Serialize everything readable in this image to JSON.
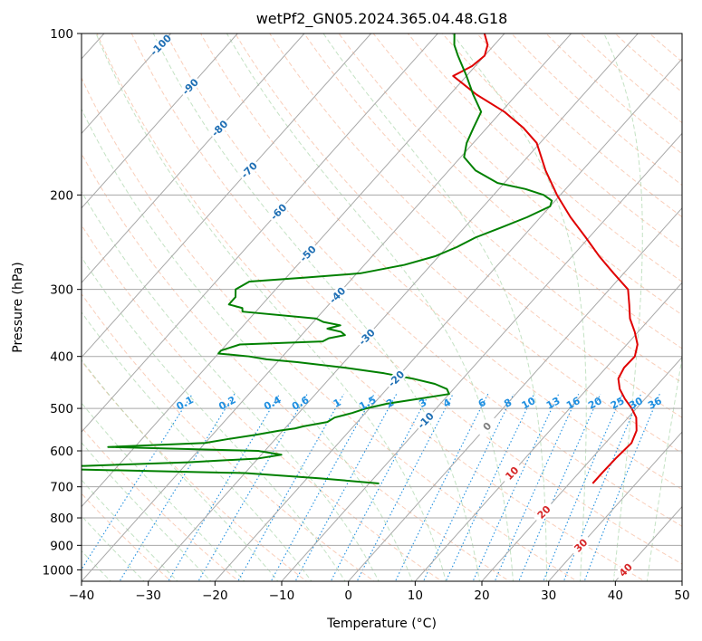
{
  "chart_data": {
    "type": "line",
    "subtype": "skew-t log-p",
    "title": "wetPf2_GN05.2024.365.04.48.G18",
    "xlabel": "Temperature (°C)",
    "ylabel": "Pressure (hPa)",
    "xlim": [
      -40,
      50
    ],
    "ylim": [
      1050,
      100
    ],
    "yscale": "log",
    "grid": true,
    "x_ticks": [
      -40,
      -30,
      -20,
      -10,
      0,
      10,
      20,
      30,
      40,
      50
    ],
    "y_ticks": [
      100,
      200,
      300,
      400,
      500,
      600,
      700,
      800,
      900,
      1000
    ],
    "colors": {
      "temperature": "#e00000",
      "dewpoint": "#008000",
      "isotherm": "#a8a8a8",
      "dry_adiabat": "#f4a582",
      "moist_adiabat": "#9ccf9c",
      "mixing_ratio": "#1f8fe0",
      "label_negative": "#1f6fb4",
      "label_positive": "#d62728",
      "label_zero": "#7f7f7f"
    },
    "series": [
      {
        "key": "temperature",
        "p": [
          690,
          660,
          620,
          580,
          550,
          520,
          500,
          480,
          460,
          440,
          420,
          400,
          380,
          360,
          340,
          320,
          300,
          280,
          260,
          240,
          220,
          200,
          180,
          160,
          150,
          140,
          130,
          120,
          115,
          110,
          105,
          100
        ],
        "t": [
          23.5,
          23.5,
          23.6,
          23.9,
          23.0,
          21.2,
          19.3,
          17.0,
          14.9,
          13.3,
          12.7,
          12.8,
          11.6,
          9.5,
          7.0,
          5.0,
          2.8,
          -1.5,
          -6.0,
          -10.5,
          -15.5,
          -20.5,
          -25.5,
          -30.5,
          -34.5,
          -39.5,
          -46.0,
          -52.0,
          -50.5,
          -50.0,
          -51.0,
          -53.0
        ]
      },
      {
        "key": "dewpoint",
        "p": [
          690,
          675,
          660,
          650,
          645,
          640,
          630,
          620,
          610,
          600,
          590,
          580,
          570,
          560,
          550,
          545,
          540,
          530,
          520,
          510,
          500,
          490,
          480,
          470,
          460,
          450,
          440,
          430,
          420,
          410,
          405,
          400,
          395,
          390,
          380,
          375,
          370,
          365,
          360,
          355,
          350,
          345,
          340,
          330,
          325,
          320,
          310,
          300,
          290,
          285,
          280,
          270,
          260,
          250,
          240,
          230,
          220,
          210,
          205,
          200,
          195,
          190,
          180,
          170,
          160,
          150,
          140,
          130,
          120,
          110,
          105,
          100
        ],
        "td": [
          -8.5,
          -18.0,
          -30.0,
          -55.0,
          -70.0,
          -55.0,
          -40.0,
          -30.0,
          -27.0,
          -31.0,
          -54.0,
          -40.0,
          -37.0,
          -33.5,
          -30.5,
          -28.5,
          -27.5,
          -24.5,
          -24.0,
          -22.0,
          -20.5,
          -18.0,
          -14.0,
          -10.0,
          -11.0,
          -13.5,
          -17.5,
          -22.5,
          -29.0,
          -37.0,
          -42.0,
          -45.0,
          -50.0,
          -50.0,
          -48.0,
          -36.0,
          -35.5,
          -33.5,
          -34.5,
          -37.0,
          -35.5,
          -38.5,
          -40.0,
          -52.0,
          -52.5,
          -55.0,
          -55.0,
          -56.0,
          -55.0,
          -47.0,
          -39.5,
          -34.0,
          -30.5,
          -28.5,
          -27.0,
          -24.5,
          -22.0,
          -20.0,
          -20.5,
          -22.5,
          -26.0,
          -31.0,
          -36.0,
          -39.5,
          -41.0,
          -42.0,
          -43.0,
          -46.5,
          -50.0,
          -54.0,
          -56.0,
          -57.5
        ]
      }
    ],
    "isotherm_labels": [
      {
        "t": -100,
        "text": "-100"
      },
      {
        "t": -90,
        "text": "-90"
      },
      {
        "t": -80,
        "text": "-80"
      },
      {
        "t": -70,
        "text": "-70"
      },
      {
        "t": -60,
        "text": "-60"
      },
      {
        "t": -50,
        "text": "-50"
      },
      {
        "t": -40,
        "text": "-40"
      },
      {
        "t": -30,
        "text": "-30"
      },
      {
        "t": -20,
        "text": "-20"
      },
      {
        "t": -10,
        "text": "-10"
      },
      {
        "t": 0,
        "text": "0"
      },
      {
        "t": 10,
        "text": "10"
      },
      {
        "t": 20,
        "text": "20"
      },
      {
        "t": 30,
        "text": "30"
      },
      {
        "t": 40,
        "text": "40"
      }
    ],
    "mixing_ratio_labels": [
      "0.1",
      "0.2",
      "0.4",
      "0.6",
      "1",
      "1.5",
      "2",
      "3",
      "4",
      "6",
      "8",
      "10",
      "13",
      "16",
      "20",
      "25",
      "30",
      "36"
    ]
  }
}
